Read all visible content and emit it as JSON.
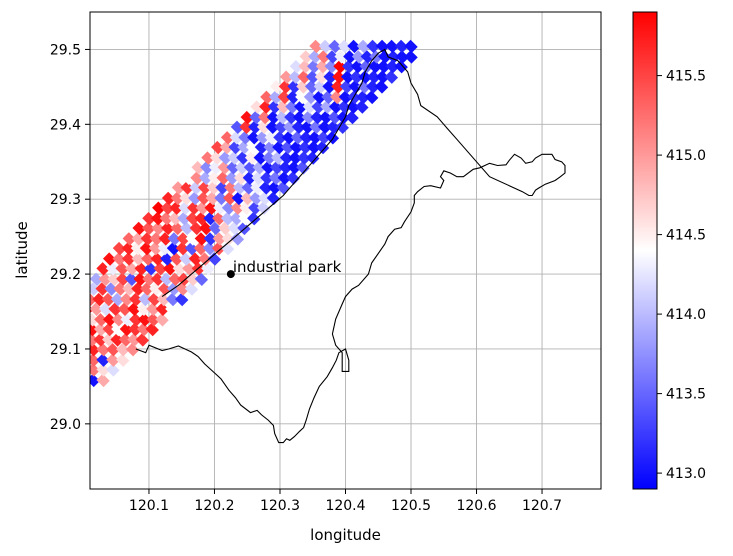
{
  "chart_data": {
    "type": "heatmap",
    "title": "",
    "xlabel": "longitude",
    "ylabel": "latitude",
    "xlim": [
      120.01,
      120.79
    ],
    "ylim": [
      28.913,
      29.55
    ],
    "xticks": [
      120.1,
      120.2,
      120.3,
      120.4,
      120.5,
      120.6,
      120.7
    ],
    "xtick_labels": [
      "120.1",
      "120.2",
      "120.3",
      "120.4",
      "120.5",
      "120.6",
      "120.7"
    ],
    "yticks": [
      29.0,
      29.1,
      29.2,
      29.3,
      29.4,
      29.5
    ],
    "ytick_labels": [
      "29.0",
      "29.1",
      "29.2",
      "29.3",
      "29.4",
      "29.5"
    ],
    "grid": true,
    "colormap": "bwr",
    "color_range": [
      412.9,
      415.9
    ],
    "colorbar_ticks": [
      413.0,
      413.5,
      414.0,
      414.5,
      415.0,
      415.5
    ],
    "colorbar_tick_labels": [
      "413.0",
      "413.5",
      "414.0",
      "414.5",
      "415.0",
      "415.5"
    ],
    "cell_size_deg": 0.0135,
    "swath": {
      "lines": [
        {
          "lat": 29.045,
          "lon_start": 120.0,
          "lon_end": 120.016,
          "values": [
            414.9
          ]
        },
        {
          "lat": 29.058,
          "lon_start": 120.0,
          "lon_end": 120.03,
          "values": [
            415.4,
            413.0,
            414.9
          ]
        },
        {
          "lat": 29.072,
          "lon_start": 120.0,
          "lon_end": 120.045,
          "values": [
            415.6,
            415.2,
            414.6,
            414.2
          ]
        },
        {
          "lat": 29.085,
          "lon_start": 120.0,
          "lon_end": 120.06,
          "values": [
            415.8,
            415.3,
            413.1,
            415.0,
            414.6
          ]
        },
        {
          "lat": 29.099,
          "lon_start": 120.0,
          "lon_end": 120.075,
          "values": [
            415.5,
            415.7,
            415.2,
            415.4,
            414.8,
            415.1
          ]
        },
        {
          "lat": 29.112,
          "lon_start": 120.0,
          "lon_end": 120.09,
          "values": [
            415.8,
            415.2,
            415.6,
            414.7,
            415.7,
            415.3,
            415.0,
            415.6
          ]
        },
        {
          "lat": 29.126,
          "lon_start": 120.0,
          "lon_end": 120.105,
          "values": [
            415.4,
            415.8,
            414.9,
            415.5,
            414.4,
            415.8,
            415.6,
            415.2,
            415.7
          ]
        },
        {
          "lat": 29.139,
          "lon_start": 120.0,
          "lon_end": 120.12,
          "values": [
            415.7,
            414.6,
            415.3,
            415.8,
            415.1,
            414.3,
            415.6,
            415.8,
            415.4,
            414.9
          ]
        },
        {
          "lat": 29.153,
          "lon_start": 120.005,
          "lon_end": 120.135,
          "values": [
            415.9,
            415.0,
            414.2,
            415.6,
            415.4,
            415.8,
            414.5,
            415.0,
            415.7,
            414.4
          ]
        },
        {
          "lat": 29.166,
          "lon_start": 120.01,
          "lon_end": 120.15,
          "values": [
            415.3,
            415.7,
            415.4,
            413.9,
            415.1,
            415.6,
            414.0,
            415.5,
            414.8,
            413.6,
            413.2
          ]
        },
        {
          "lat": 29.18,
          "lon_start": 120.015,
          "lon_end": 120.165,
          "values": [
            414.1,
            415.6,
            413.7,
            415.2,
            414.8,
            415.7,
            415.3,
            414.5,
            415.4,
            413.8,
            415.1,
            414.2
          ]
        },
        {
          "lat": 29.193,
          "lon_start": 120.02,
          "lon_end": 120.18,
          "values": [
            413.9,
            415.0,
            414.7,
            415.5,
            413.4,
            415.8,
            415.2,
            415.6,
            414.0,
            415.3,
            415.5,
            414.7,
            413.5
          ]
        },
        {
          "lat": 29.207,
          "lon_start": 120.03,
          "lon_end": 120.19,
          "values": [
            415.7,
            414.3,
            415.4,
            414.9,
            415.7,
            413.2,
            415.5,
            415.8,
            414.6,
            415.0,
            415.6,
            414.3
          ]
        },
        {
          "lat": 29.22,
          "lon_start": 120.04,
          "lon_end": 120.2,
          "values": [
            415.8,
            415.2,
            415.6,
            414.8,
            415.3,
            415.7,
            413.1,
            415.4,
            414.1,
            415.7,
            415.2,
            413.3
          ]
        },
        {
          "lat": 29.234,
          "lon_start": 120.055,
          "lon_end": 120.22,
          "values": [
            415.5,
            415.7,
            414.5,
            415.8,
            415.0,
            414.3,
            413.0,
            415.6,
            413.4,
            415.3,
            413.7,
            415.4,
            414.2
          ]
        },
        {
          "lat": 29.247,
          "lon_start": 120.07,
          "lon_end": 120.235,
          "values": [
            415.3,
            414.9,
            415.6,
            415.2,
            415.7,
            413.6,
            415.5,
            414.4,
            415.8,
            413.2,
            415.0,
            414.6,
            413.8
          ]
        },
        {
          "lat": 29.261,
          "lon_start": 120.085,
          "lon_end": 120.245,
          "values": [
            415.8,
            415.4,
            415.1,
            415.7,
            415.3,
            414.0,
            415.6,
            415.8,
            413.5,
            414.7,
            414.2,
            413.4
          ]
        },
        {
          "lat": 29.274,
          "lon_start": 120.1,
          "lon_end": 120.26,
          "values": [
            415.6,
            415.8,
            415.2,
            414.8,
            413.9,
            415.5,
            415.7,
            413.1,
            415.3,
            414.0,
            413.9,
            414.4,
            413.2
          ]
        },
        {
          "lat": 29.288,
          "lon_start": 120.115,
          "lon_end": 120.275,
          "values": [
            415.9,
            415.5,
            415.7,
            414.2,
            415.6,
            415.0,
            415.8,
            414.3,
            413.7,
            415.1,
            414.5,
            413.3,
            414.1
          ]
        },
        {
          "lat": 29.301,
          "lon_start": 120.13,
          "lon_end": 120.29,
          "values": [
            415.7,
            415.2,
            414.6,
            413.8,
            415.4,
            414.9,
            413.6,
            415.4,
            413.0,
            414.8,
            413.8,
            414.2,
            413.1
          ]
        },
        {
          "lat": 29.315,
          "lon_start": 120.145,
          "lon_end": 120.305,
          "values": [
            415.0,
            415.6,
            414.1,
            415.5,
            414.7,
            413.3,
            415.2,
            414.0,
            413.5,
            414.3,
            413.1,
            413.0,
            413.4
          ]
        },
        {
          "lat": 29.328,
          "lon_start": 120.16,
          "lon_end": 120.32,
          "values": [
            414.4,
            415.1,
            413.9,
            414.5,
            415.3,
            413.8,
            414.6,
            413.1,
            414.2,
            413.2,
            413.6,
            413.0,
            413.2
          ]
        },
        {
          "lat": 29.342,
          "lon_start": 120.175,
          "lon_end": 120.335,
          "values": [
            414.8,
            413.7,
            414.3,
            415.0,
            413.5,
            414.1,
            413.4,
            413.9,
            413.0,
            413.3,
            413.1,
            413.0,
            413.4
          ]
        },
        {
          "lat": 29.355,
          "lon_start": 120.19,
          "lon_end": 120.35,
          "values": [
            415.2,
            414.6,
            413.8,
            414.1,
            413.2,
            414.5,
            413.0,
            413.6,
            414.0,
            413.1,
            413.0,
            413.2,
            413.1
          ]
        },
        {
          "lat": 29.369,
          "lon_start": 120.205,
          "lon_end": 120.365,
          "values": [
            415.5,
            414.9,
            413.3,
            413.9,
            414.4,
            413.1,
            413.7,
            413.0,
            413.4,
            413.0,
            413.2,
            413.0,
            413.1
          ]
        },
        {
          "lat": 29.382,
          "lon_start": 120.22,
          "lon_end": 120.38,
          "values": [
            415.3,
            414.2,
            413.6,
            413.0,
            413.8,
            414.3,
            413.2,
            413.0,
            413.5,
            413.1,
            413.0,
            413.3,
            413.0
          ]
        },
        {
          "lat": 29.396,
          "lon_start": 120.235,
          "lon_end": 120.395,
          "values": [
            413.4,
            415.6,
            413.1,
            414.6,
            413.0,
            413.3,
            413.8,
            413.1,
            413.0,
            413.6,
            413.0,
            413.1,
            413.2
          ]
        },
        {
          "lat": 29.409,
          "lon_start": 120.25,
          "lon_end": 120.41,
          "values": [
            415.8,
            413.5,
            415.2,
            413.0,
            414.0,
            413.2,
            413.0,
            413.7,
            413.1,
            413.0,
            413.4,
            413.0,
            413.1
          ]
        },
        {
          "lat": 29.423,
          "lon_start": 120.265,
          "lon_end": 120.425,
          "values": [
            414.6,
            415.7,
            413.2,
            414.8,
            413.6,
            413.0,
            414.2,
            413.3,
            413.9,
            413.0,
            413.2,
            413.0,
            413.1
          ]
        },
        {
          "lat": 29.436,
          "lon_start": 120.28,
          "lon_end": 120.44,
          "values": [
            415.3,
            413.9,
            415.5,
            413.1,
            414.4,
            413.8,
            413.0,
            413.5,
            415.1,
            413.0,
            413.2,
            413.1,
            413.0
          ]
        },
        {
          "lat": 29.45,
          "lon_start": 120.295,
          "lon_end": 120.455,
          "values": [
            414.5,
            415.6,
            413.2,
            414.7,
            413.5,
            414.1,
            413.0,
            415.7,
            413.3,
            413.0,
            413.6,
            413.1,
            413.0
          ]
        },
        {
          "lat": 29.463,
          "lon_start": 120.31,
          "lon_end": 120.47,
          "values": [
            415.0,
            414.0,
            415.3,
            413.4,
            414.6,
            413.1,
            415.8,
            413.0,
            413.2,
            413.0,
            413.1,
            413.0,
            413.2
          ]
        },
        {
          "lat": 29.477,
          "lon_start": 120.325,
          "lon_end": 120.485,
          "values": [
            414.2,
            414.8,
            413.6,
            414.9,
            413.7,
            415.9,
            413.2,
            413.0,
            413.5,
            413.0,
            413.0,
            413.1,
            413.0
          ]
        },
        {
          "lat": 29.49,
          "lon_start": 120.34,
          "lon_end": 120.5,
          "values": [
            414.7,
            413.9,
            415.2,
            413.3,
            414.3,
            413.0,
            413.8,
            413.1,
            413.6,
            413.0,
            413.1,
            413.0,
            413.0
          ]
        },
        {
          "lat": 29.504,
          "lon_start": 120.355,
          "lon_end": 120.5,
          "values": [
            415.1,
            414.1,
            413.5,
            414.2,
            413.0,
            413.9,
            413.2,
            413.0,
            413.0,
            413.1,
            413.0
          ]
        }
      ]
    },
    "annotations": [
      {
        "label": "industrial park",
        "lon": 120.225,
        "lat": 29.2
      }
    ],
    "boundary": {
      "lon": [
        120.08,
        120.095,
        120.1,
        120.12,
        120.13,
        120.145,
        120.155,
        120.165,
        120.175,
        120.18,
        120.185,
        120.2,
        120.21,
        120.222,
        120.232,
        120.24,
        120.255,
        120.265,
        120.272,
        120.282,
        120.29,
        120.292,
        120.298,
        120.305,
        120.31,
        120.315,
        120.322,
        120.33,
        120.336,
        120.34,
        120.345,
        120.352,
        120.36,
        120.372,
        120.38,
        120.386,
        120.39,
        120.4,
        120.405,
        120.405,
        120.395,
        120.395,
        120.385,
        120.38,
        120.385,
        120.395,
        120.4,
        120.41,
        120.42,
        120.435,
        120.44,
        120.452,
        120.46,
        120.465,
        120.475,
        120.485,
        120.49,
        120.5,
        120.505,
        120.505,
        120.51,
        120.52,
        120.53,
        120.545,
        120.55,
        120.545,
        120.55,
        120.56,
        120.57,
        120.58,
        120.595,
        120.605,
        120.62,
        120.632,
        120.645,
        120.65,
        120.658,
        120.668,
        120.675,
        120.685,
        120.69,
        120.7,
        120.715,
        120.72,
        120.73,
        120.735,
        120.735,
        120.728,
        120.72,
        120.705,
        120.695,
        120.69,
        120.685,
        120.68,
        120.67,
        120.65,
        120.62,
        120.59,
        120.57,
        120.555,
        120.54,
        120.515,
        120.51,
        120.5,
        120.495,
        120.485,
        120.48,
        120.465,
        120.46,
        120.45,
        120.44,
        120.43,
        120.425,
        120.415,
        120.405,
        120.4,
        120.39,
        120.38,
        120.365,
        120.35,
        120.335,
        120.32,
        120.305,
        120.285,
        120.265,
        120.245,
        120.225,
        120.205,
        120.185,
        120.165,
        120.145,
        120.12
      ],
      "lat": [
        29.1,
        29.095,
        29.105,
        29.098,
        29.1,
        29.104,
        29.1,
        29.096,
        29.09,
        29.085,
        29.08,
        29.068,
        29.06,
        29.045,
        29.035,
        29.025,
        29.015,
        29.018,
        29.012,
        29.005,
        28.998,
        28.987,
        28.975,
        28.975,
        28.98,
        28.978,
        28.983,
        28.99,
        28.995,
        29.005,
        29.02,
        29.035,
        29.05,
        29.063,
        29.075,
        29.085,
        29.095,
        29.1,
        29.085,
        29.07,
        29.07,
        29.095,
        29.105,
        29.12,
        29.14,
        29.16,
        29.17,
        29.18,
        29.185,
        29.2,
        29.215,
        29.23,
        29.24,
        29.25,
        29.26,
        29.262,
        29.27,
        29.283,
        29.295,
        29.305,
        29.31,
        29.317,
        29.318,
        29.315,
        29.325,
        29.33,
        29.338,
        29.335,
        29.33,
        29.33,
        29.34,
        29.342,
        29.348,
        29.345,
        29.346,
        29.352,
        29.36,
        29.355,
        29.348,
        29.35,
        29.355,
        29.36,
        29.36,
        29.353,
        29.35,
        29.345,
        29.335,
        29.33,
        29.325,
        29.32,
        29.315,
        29.312,
        29.305,
        29.305,
        29.31,
        29.318,
        29.33,
        29.36,
        29.38,
        29.395,
        29.41,
        29.425,
        29.44,
        29.455,
        29.47,
        29.48,
        29.485,
        29.49,
        29.5,
        29.495,
        29.485,
        29.47,
        29.455,
        29.44,
        29.425,
        29.41,
        29.395,
        29.38,
        29.365,
        29.35,
        29.335,
        29.32,
        29.305,
        29.29,
        29.275,
        29.26,
        29.245,
        29.23,
        29.215,
        29.2,
        29.185,
        29.17
      ]
    }
  }
}
